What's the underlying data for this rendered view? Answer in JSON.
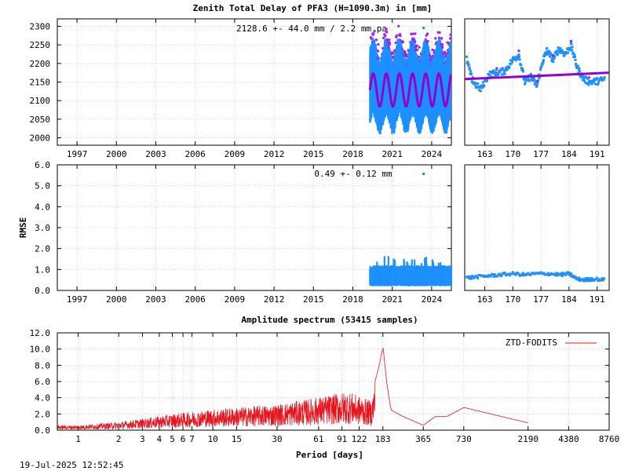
{
  "colors": {
    "data": "#1e90ff",
    "model": "#9400d3",
    "outlier": "#a020f0",
    "spectrum": "#e8141e"
  },
  "titles": {
    "main": "Zenith Total Delay of PFA3 (H=1090.3m) in [mm]",
    "spectrum": "Amplitude spectrum (53415 samples)",
    "xlabel": "Period [days]",
    "timestamp": "19-Jul-2025 12:52:45"
  },
  "chart_data": [
    {
      "id": "ztd-timeseries",
      "type": "scatter",
      "title": "Zenith Total Delay of PFA3 (H=1090.3m) in [mm]",
      "ylabel": "",
      "annotation": "2128.6 +-  44.0 mm /  2.2 mm pa",
      "xlim": [
        1995.5,
        2025.5
      ],
      "ylim": [
        1980,
        2320
      ],
      "xticks": [
        1997,
        2000,
        2003,
        2006,
        2009,
        2012,
        2015,
        2018,
        2021,
        2024
      ],
      "xtick_labels": [
        "1997",
        "2000",
        "2003",
        "2006",
        "2009",
        "2012",
        "2015",
        "2018",
        "2021",
        "2024"
      ],
      "yticks": [
        2000,
        2050,
        2100,
        2150,
        2200,
        2250,
        2300
      ],
      "ytick_labels": [
        "2000",
        "2050",
        "2100",
        "2150",
        "2200",
        "2250",
        "2300"
      ],
      "data_start": 2019.3,
      "data_end": 2025.5,
      "mean": 2128.6,
      "seasonal_amplitude": 44.0,
      "envelope": {
        "upper_min": 2200,
        "upper_max": 2255,
        "lower_min": 2020,
        "lower_max": 2070
      }
    },
    {
      "id": "ztd-recent",
      "type": "scatter",
      "xlim": [
        158,
        194
      ],
      "ylim": [
        1980,
        2320
      ],
      "xticks": [
        163,
        170,
        177,
        184,
        191
      ],
      "xtick_labels": [
        "163",
        "170",
        "177",
        "184",
        "191"
      ],
      "trend": {
        "x": [
          158,
          194
        ],
        "y": [
          2158,
          2175
        ]
      },
      "points": {
        "x": [
          158.5,
          160,
          162,
          164,
          166,
          168,
          170,
          171.5,
          173,
          174.5,
          176,
          177.5,
          178.5,
          180,
          181.5,
          183,
          184.5,
          186,
          187.5,
          189,
          191,
          193
        ],
        "y": [
          2210,
          2150,
          2130,
          2170,
          2175,
          2180,
          2210,
          2222,
          2150,
          2165,
          2140,
          2208,
          2235,
          2210,
          2240,
          2225,
          2248,
          2190,
          2160,
          2150,
          2152,
          2158
        ]
      }
    },
    {
      "id": "rmse-timeseries",
      "type": "scatter",
      "ylabel": "RMSE",
      "annotation": "0.49 +-  0.12 mm",
      "xlim": [
        1995.5,
        2025.5
      ],
      "ylim": [
        0,
        6
      ],
      "xticks": [
        1997,
        2000,
        2003,
        2006,
        2009,
        2012,
        2015,
        2018,
        2021,
        2024
      ],
      "xtick_labels": [
        "1997",
        "2000",
        "2003",
        "2006",
        "2009",
        "2012",
        "2015",
        "2018",
        "2021",
        "2024"
      ],
      "yticks": [
        0,
        1,
        2,
        3,
        4,
        5,
        6
      ],
      "ytick_labels": [
        "0.0",
        "1.0",
        "2.0",
        "3.0",
        "4.0",
        "5.0",
        "6.0"
      ],
      "data_start": 2019.3,
      "data_end": 2025.5,
      "mean": 0.49,
      "typical_range": [
        0.3,
        1.0
      ],
      "max": 1.5
    },
    {
      "id": "rmse-recent",
      "type": "scatter",
      "xlim": [
        158,
        194
      ],
      "ylim": [
        0,
        6
      ],
      "xticks": [
        163,
        170,
        177,
        184,
        191
      ],
      "xtick_labels": [
        "163",
        "170",
        "177",
        "184",
        "191"
      ],
      "points": {
        "x": [
          158.5,
          161,
          164,
          167,
          170,
          173,
          176,
          179,
          182,
          184,
          186,
          188,
          190,
          193
        ],
        "y": [
          0.6,
          0.65,
          0.7,
          0.75,
          0.8,
          0.75,
          0.8,
          0.8,
          0.75,
          0.8,
          0.55,
          0.5,
          0.55,
          0.5
        ]
      }
    },
    {
      "id": "amplitude-spectrum",
      "type": "line",
      "title": "Amplitude spectrum (53415 samples)",
      "xlabel": "Period [days]",
      "xscale": "log",
      "xlim": [
        0.7,
        8760
      ],
      "ylim": [
        0,
        12
      ],
      "xticks": [
        1,
        2,
        3,
        4,
        5,
        6,
        7,
        10,
        15,
        30,
        61,
        91,
        122,
        183,
        365,
        730,
        2190,
        4380,
        8760
      ],
      "xtick_labels": [
        "1",
        "2",
        "3",
        "4",
        "5",
        "6",
        "7",
        "10",
        "15",
        "30",
        "61",
        "91",
        "122",
        "183",
        "365",
        "730",
        "2190",
        "4380",
        "8760"
      ],
      "yticks": [
        0,
        2,
        4,
        6,
        8,
        10,
        12
      ],
      "ytick_labels": [
        "0.0",
        "2.0",
        "4.0",
        "6.0",
        "8.0",
        "10.0",
        "12.0"
      ],
      "legend": "ZTD-FODITS",
      "legend_position": "top-right",
      "peaks": {
        "period": [
          1,
          2,
          3,
          5,
          10,
          15,
          30,
          50,
          100,
          150,
          160,
          175,
          183,
          195,
          210,
          250,
          365,
          450,
          550,
          730,
          2190
        ],
        "amplitude": [
          0.6,
          1.0,
          1.4,
          2.0,
          2.6,
          2.8,
          3.2,
          3.8,
          4.8,
          3.6,
          6.0,
          8.5,
          10.5,
          6.0,
          2.5,
          1.8,
          0.6,
          1.7,
          1.7,
          2.8,
          0.9
        ]
      }
    }
  ]
}
